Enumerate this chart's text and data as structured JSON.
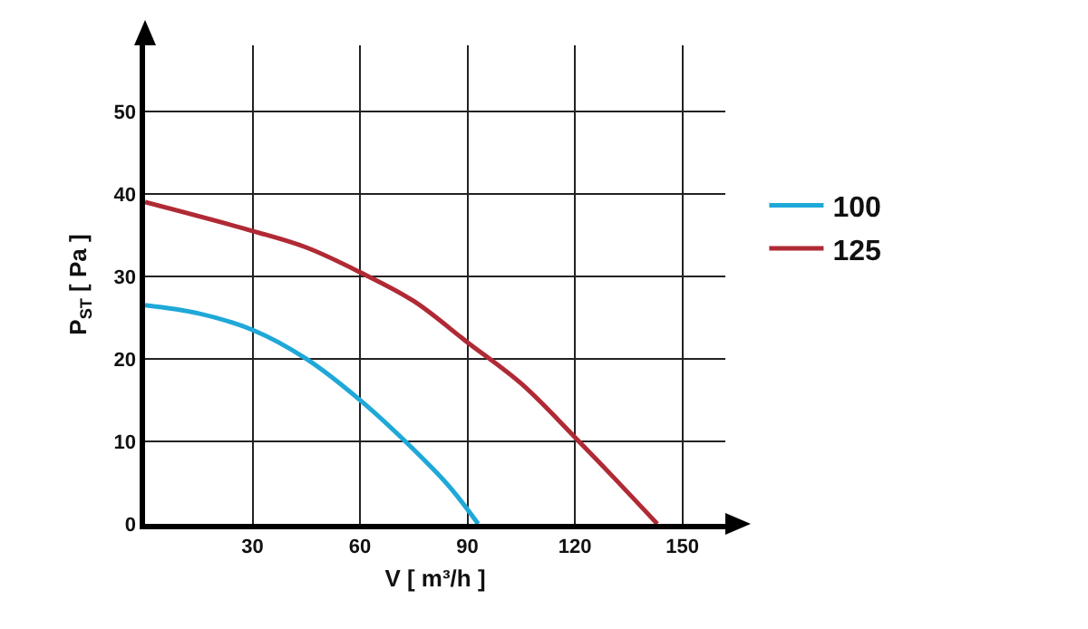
{
  "chart_data": {
    "type": "line",
    "xlabel": "V [ m³/h ]",
    "ylabel": "P$_{ST}$ [ Pa ]",
    "series": [
      {
        "name": "100",
        "color": "#1fa8d8",
        "x": [
          0,
          15,
          30,
          45,
          60,
          75,
          85,
          93
        ],
        "values": [
          26.5,
          25.5,
          23.5,
          20,
          15,
          9,
          4.5,
          0
        ]
      },
      {
        "name": "125",
        "color": "#b02a35",
        "x": [
          0,
          30,
          45,
          60,
          75,
          90,
          105,
          120,
          130,
          143
        ],
        "values": [
          39,
          35.5,
          33.5,
          30.5,
          27,
          22,
          17,
          10.5,
          6,
          0
        ]
      }
    ],
    "xlim": [
      0,
      162
    ],
    "ylim": [
      0,
      58
    ],
    "xticks": [
      {
        "value": 0,
        "label": null
      },
      30,
      60,
      90,
      120,
      150
    ],
    "yticks": [
      0,
      10,
      20,
      30,
      40,
      50
    ],
    "grid": true,
    "legend": "right",
    "marker": "none",
    "line_style": "solid"
  }
}
